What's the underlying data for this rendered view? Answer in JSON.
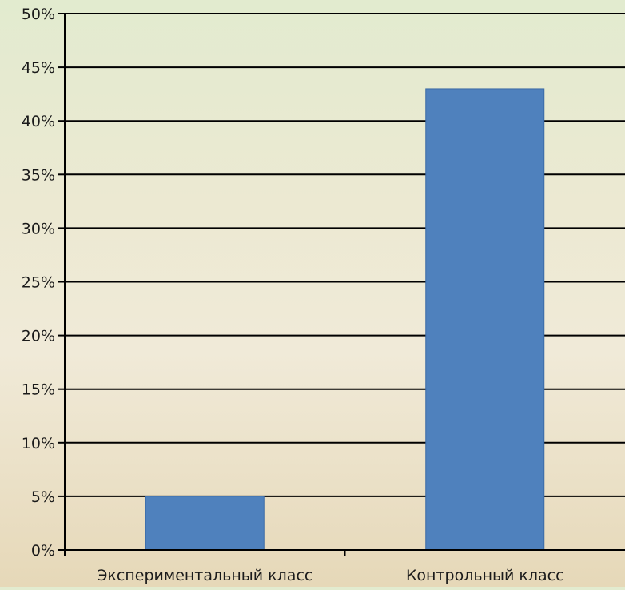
{
  "chart_data": {
    "type": "bar",
    "title": "",
    "xlabel": "",
    "ylabel": "",
    "categories": [
      "Экспериментальный класс",
      "Контрольный класс"
    ],
    "values": [
      5,
      43
    ],
    "ylim": [
      0,
      50
    ],
    "ytick_step": 5,
    "y_tick_labels": [
      "0%",
      "5%",
      "10%",
      "15%",
      "20%",
      "25%",
      "30%",
      "35%",
      "40%",
      "45%",
      "50%"
    ],
    "grid": true,
    "legend": "none",
    "bar_color": "#4f81bd",
    "bar_edge_color": "#3a6aa6",
    "gridline_color": "#000000"
  }
}
